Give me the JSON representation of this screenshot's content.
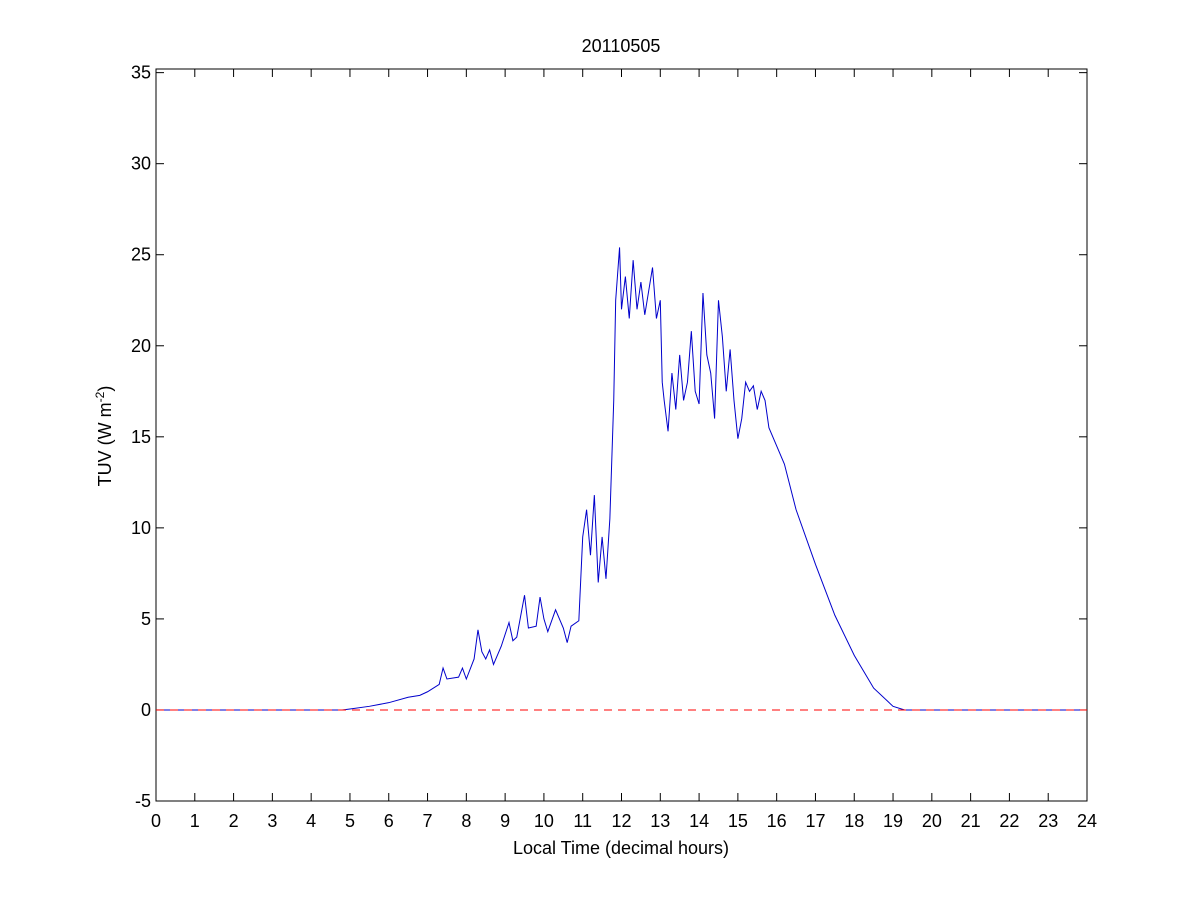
{
  "chart_data": {
    "type": "line",
    "title": "20110505",
    "xlabel": "Local Time (decimal hours)",
    "ylabel": [
      "TUV (W m",
      "-2",
      ")"
    ],
    "xlim": [
      0,
      24
    ],
    "xticks": [
      0,
      1,
      2,
      3,
      4,
      5,
      6,
      7,
      8,
      9,
      10,
      11,
      12,
      13,
      14,
      15,
      16,
      17,
      18,
      19,
      20,
      21,
      22,
      23,
      24
    ],
    "ylim": [
      -5,
      35.2
    ],
    "yticks": [
      -5,
      0,
      5,
      10,
      15,
      20,
      25,
      30,
      35
    ],
    "series": [
      {
        "color": "#0000cc",
        "dash": false,
        "x": [
          0,
          4.8,
          5,
          5.5,
          6,
          6.5,
          6.8,
          7,
          7.3,
          7.4,
          7.5,
          7.8,
          7.9,
          8.0,
          8.2,
          8.3,
          8.4,
          8.5,
          8.6,
          8.7,
          8.9,
          9.1,
          9.2,
          9.3,
          9.5,
          9.6,
          9.8,
          9.9,
          10.0,
          10.1,
          10.3,
          10.5,
          10.6,
          10.7,
          10.9,
          11.0,
          11.1,
          11.2,
          11.3,
          11.4,
          11.5,
          11.6,
          11.7,
          11.8,
          11.85,
          11.95,
          12.0,
          12.1,
          12.2,
          12.3,
          12.4,
          12.5,
          12.6,
          12.8,
          12.9,
          13.0,
          13.05,
          13.1,
          13.2,
          13.3,
          13.4,
          13.5,
          13.6,
          13.7,
          13.8,
          13.9,
          14.0,
          14.1,
          14.2,
          14.3,
          14.4,
          14.5,
          14.6,
          14.7,
          14.8,
          14.9,
          15.0,
          15.1,
          15.2,
          15.3,
          15.4,
          15.5,
          15.6,
          15.7,
          15.8,
          16.0,
          16.2,
          16.5,
          17,
          17.5,
          18,
          18.5,
          19,
          19.3,
          24
        ],
        "values": [
          0,
          0,
          0.05,
          0.2,
          0.4,
          0.7,
          0.8,
          1.0,
          1.4,
          2.3,
          1.7,
          1.8,
          2.3,
          1.7,
          2.8,
          4.4,
          3.2,
          2.8,
          3.3,
          2.5,
          3.5,
          4.8,
          3.8,
          4.0,
          6.3,
          4.5,
          4.6,
          6.2,
          5.0,
          4.3,
          5.5,
          4.5,
          3.7,
          4.6,
          4.9,
          9.5,
          11.0,
          8.5,
          11.8,
          7.0,
          9.5,
          7.2,
          10.5,
          17,
          22.5,
          25.4,
          22,
          23.8,
          21.5,
          24.7,
          22,
          23.5,
          21.7,
          24.3,
          21.5,
          22.5,
          18,
          17,
          15.3,
          18.5,
          16.5,
          19.5,
          17,
          18,
          20.8,
          17.5,
          16.8,
          22.9,
          19.5,
          18.5,
          16,
          22.5,
          20.5,
          17.5,
          19.8,
          17,
          14.9,
          16,
          18,
          17.5,
          17.8,
          16.5,
          17.5,
          17,
          15.5,
          14.5,
          13.5,
          11,
          8,
          5.2,
          3,
          1.2,
          0.2,
          0,
          0
        ]
      },
      {
        "color": "#ff0000",
        "dash": true,
        "x": [
          0,
          24
        ],
        "values": [
          0,
          0
        ]
      }
    ]
  }
}
